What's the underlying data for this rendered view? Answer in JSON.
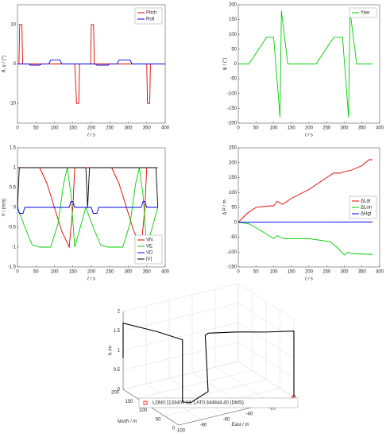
{
  "chart_data": [
    {
      "type": "line",
      "xlabel": "t / s",
      "ylabel": "θ, γ / (°)",
      "xlim": [
        0,
        400
      ],
      "ylim": [
        -15,
        15
      ],
      "xticks": [
        0,
        50,
        100,
        150,
        200,
        250,
        300,
        350,
        400
      ],
      "yticks": [
        -10,
        0,
        10
      ],
      "legend": "upper right",
      "series": [
        {
          "name": "Pitch",
          "color": "#e00000",
          "x": [
            0,
            4,
            6,
            12,
            14,
            150,
            155,
            160,
            166,
            168,
            195,
            198,
            200,
            206,
            208,
            345,
            350,
            352,
            358,
            360,
            400
          ],
          "values": [
            0,
            0,
            10,
            10,
            0,
            0,
            0,
            -10,
            -10,
            0,
            0,
            0,
            10,
            10,
            0,
            0,
            0,
            -10,
            -10,
            0,
            0
          ]
        },
        {
          "name": "Roll",
          "color": "#0000e0",
          "x": [
            0,
            30,
            35,
            60,
            65,
            85,
            90,
            115,
            120,
            210,
            215,
            245,
            250,
            270,
            275,
            305,
            310,
            400
          ],
          "values": [
            0,
            0,
            -0.3,
            -0.3,
            0,
            0,
            1,
            1,
            0,
            0,
            -0.3,
            -0.3,
            0,
            0,
            1,
            1,
            0,
            0
          ]
        }
      ]
    },
    {
      "type": "line",
      "xlabel": "t / s",
      "ylabel": "ψ / (°)",
      "xlim": [
        0,
        400
      ],
      "ylim": [
        -200,
        200
      ],
      "xticks": [
        0,
        50,
        100,
        150,
        200,
        250,
        300,
        350,
        400
      ],
      "yticks": [
        -200,
        -150,
        -100,
        -50,
        0,
        50,
        100,
        150,
        200
      ],
      "legend": "upper right",
      "series": [
        {
          "name": "Yaw",
          "color": "#00d000",
          "x": [
            0,
            30,
            80,
            100,
            118,
            122,
            140,
            220,
            270,
            295,
            312,
            316,
            335,
            380
          ],
          "values": [
            0,
            0,
            90,
            90,
            -180,
            180,
            0,
            0,
            90,
            90,
            -180,
            180,
            0,
            0
          ]
        }
      ]
    },
    {
      "type": "line",
      "xlabel": "t / s",
      "ylabel": "V / (m/s)",
      "xlim": [
        0,
        400
      ],
      "ylim": [
        -1.5,
        1.5
      ],
      "xticks": [
        0,
        50,
        100,
        150,
        200,
        250,
        300,
        350,
        400
      ],
      "yticks": [
        -1.5,
        -1,
        -0.5,
        0,
        0.5,
        1,
        1.5
      ],
      "legend": "lower right",
      "series": [
        {
          "name": "VN",
          "color": "#e00000",
          "x": [
            0,
            60,
            80,
            100,
            120,
            140,
            150,
            155,
            255,
            275,
            295,
            315,
            335,
            345,
            350,
            380
          ],
          "values": [
            1,
            1,
            0.6,
            0,
            -0.6,
            -1,
            0,
            1,
            1,
            0.6,
            0,
            -0.6,
            -1,
            0,
            1,
            1
          ]
        },
        {
          "name": "VE",
          "color": "#00d000",
          "x": [
            0,
            20,
            40,
            60,
            90,
            110,
            125,
            135,
            145,
            155,
            185,
            205,
            225,
            245,
            285,
            305,
            320,
            330,
            340,
            350,
            380
          ],
          "values": [
            0,
            -0.5,
            -0.95,
            -1,
            -1,
            -0.4,
            0.6,
            1,
            0.3,
            -1,
            0,
            -0.5,
            -0.95,
            -1,
            -1,
            -0.4,
            0.6,
            1,
            0.3,
            -1,
            0
          ]
        },
        {
          "name": "VD",
          "color": "#0000e0",
          "x": [
            0,
            5,
            15,
            20,
            140,
            145,
            150,
            155,
            200,
            205,
            215,
            220,
            335,
            340,
            345,
            350,
            380
          ],
          "values": [
            0,
            -0.15,
            -0.15,
            0,
            0,
            0.15,
            0.15,
            0,
            0,
            -0.15,
            -0.15,
            0,
            0,
            0.15,
            0.15,
            0,
            0
          ]
        },
        {
          "name": "|V|",
          "color": "#000000",
          "x": [
            0,
            5,
            185,
            190,
            195,
            375,
            380
          ],
          "values": [
            0,
            1,
            1,
            0,
            1,
            1,
            0
          ]
        }
      ]
    },
    {
      "type": "line",
      "xlabel": "t / s",
      "ylabel": "Δ P / m",
      "xlim": [
        0,
        400
      ],
      "ylim": [
        -150,
        250
      ],
      "xticks": [
        0,
        50,
        100,
        150,
        200,
        250,
        300,
        350,
        400
      ],
      "yticks": [
        -150,
        -100,
        -50,
        0,
        50,
        100,
        150,
        200,
        250
      ],
      "legend": "center right",
      "series": [
        {
          "name": "ΔLat",
          "color": "#e00000",
          "x": [
            0,
            25,
            50,
            90,
            100,
            110,
            125,
            150,
            200,
            250,
            270,
            290,
            300,
            320,
            350,
            370,
            380
          ],
          "values": [
            0,
            30,
            50,
            55,
            55,
            70,
            60,
            80,
            110,
            150,
            165,
            165,
            170,
            175,
            190,
            210,
            210
          ]
        },
        {
          "name": "ΔLon",
          "color": "#00d000",
          "x": [
            0,
            30,
            60,
            100,
            110,
            130,
            200,
            260,
            280,
            300,
            310,
            320,
            380
          ],
          "values": [
            0,
            -5,
            -25,
            -55,
            -45,
            -55,
            -55,
            -65,
            -85,
            -110,
            -100,
            -105,
            -108
          ]
        },
        {
          "name": "ΔHgt",
          "color": "#0000e0",
          "x": [
            0,
            380
          ],
          "values": [
            0,
            1
          ]
        }
      ]
    },
    {
      "type": "line3d",
      "xlabel": "East / m",
      "ylabel": "North / m",
      "zlabel": "h /m",
      "xlim": [
        -100,
        0
      ],
      "ylim": [
        0,
        200
      ],
      "zlim": [
        0,
        2
      ],
      "xticks": [
        -100,
        -80,
        -60,
        -40,
        -20,
        0
      ],
      "yticks": [
        0,
        50,
        100,
        150,
        200
      ],
      "zticks": [
        0,
        0.5,
        1,
        1.5,
        2
      ],
      "series": [
        {
          "name": "LON0:1133407.12, LAT0:344844.40 (DMS)",
          "color": "#ff0000",
          "x": [
            0
          ],
          "y": [
            0
          ],
          "z": [
            0
          ]
        },
        {
          "color": "#000000",
          "x": [
            0,
            0,
            -20,
            -40,
            -60,
            -62,
            -60,
            -70,
            -75,
            -75,
            -85,
            -100,
            -100
          ],
          "y": [
            0,
            0,
            15,
            40,
            60,
            62,
            60,
            80,
            90,
            90,
            140,
            200,
            200
          ],
          "z": [
            0,
            1.7,
            1.75,
            1.78,
            1.8,
            1.75,
            0.3,
            0,
            0,
            1.6,
            1.65,
            1.7,
            0.8
          ]
        }
      ]
    }
  ]
}
